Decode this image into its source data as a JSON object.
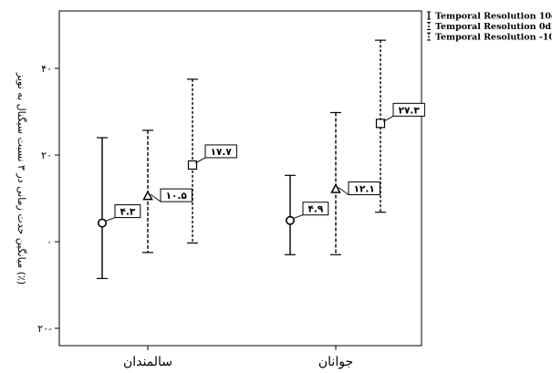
{
  "chart_data": {
    "type": "errorbar",
    "ylabel": "میانگین حدت زمانی در ۳ نسبت سیگنال به نویز (٪)",
    "ylim": [
      -10,
      50
    ],
    "yticks": [
      {
        "value": -20,
        "label": "۲۰-"
      },
      {
        "value": 0,
        "label": "۰"
      },
      {
        "value": 20,
        "label": "۲۰"
      },
      {
        "value": 40,
        "label": "۴۰"
      }
    ],
    "categories": [
      "سالمندان",
      "جوانان"
    ],
    "series": [
      {
        "name": "Temporal Resolution 10dB",
        "marker": "circle",
        "line": "solid",
        "points": [
          {
            "mean": 4.3,
            "low": -8.5,
            "high": 24.0,
            "label": "۴.۳"
          },
          {
            "mean": 4.9,
            "low": -3.0,
            "high": 15.3,
            "label": "۴.۹"
          }
        ]
      },
      {
        "name": "Temporal Resolution 0dB",
        "marker": "triangle",
        "line": "dashed",
        "points": [
          {
            "mean": 10.5,
            "low": -2.5,
            "high": 25.7,
            "label": "۱۰.۵"
          },
          {
            "mean": 12.1,
            "low": -3.0,
            "high": 29.8,
            "label": "۱۲.۱"
          }
        ]
      },
      {
        "name": "Temporal Resolution -10dB",
        "marker": "square",
        "line": "dotted",
        "points": [
          {
            "mean": 17.7,
            "low": -0.3,
            "high": 37.5,
            "label": "۱۷.۷"
          },
          {
            "mean": 27.3,
            "low": 6.8,
            "high": 46.5,
            "label": "۲۷.۳"
          }
        ]
      }
    ],
    "grid": false,
    "legend": "top-right"
  }
}
